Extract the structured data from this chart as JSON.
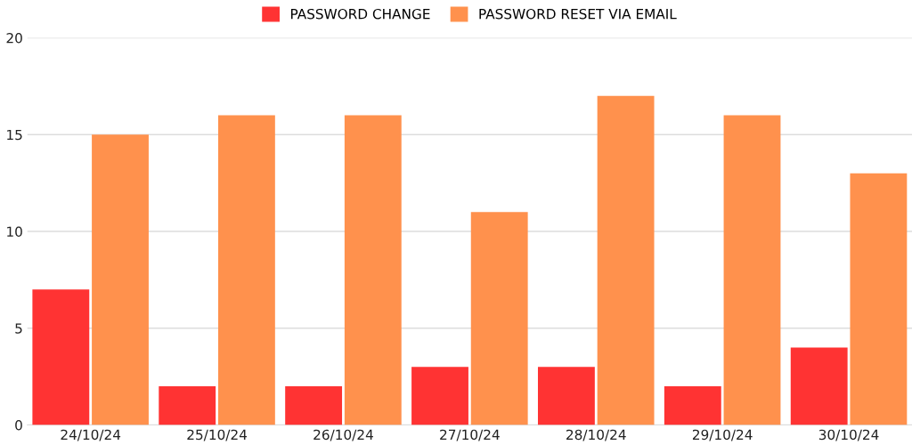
{
  "chart_data": {
    "type": "bar",
    "categories": [
      "24/10/24",
      "25/10/24",
      "26/10/24",
      "27/10/24",
      "28/10/24",
      "29/10/24",
      "30/10/24"
    ],
    "series": [
      {
        "name": "PASSWORD CHANGE",
        "color": "#ff3333",
        "values": [
          7,
          2,
          2,
          3,
          3,
          2,
          4
        ]
      },
      {
        "name": "PASSWORD RESET VIA EMAIL",
        "color": "#ff914d",
        "values": [
          15,
          16,
          16,
          11,
          17,
          16,
          13
        ]
      }
    ],
    "ylim": [
      0,
      20
    ],
    "yticks": [
      0,
      5,
      10,
      15,
      20
    ],
    "grid": "y",
    "legend": "top"
  }
}
